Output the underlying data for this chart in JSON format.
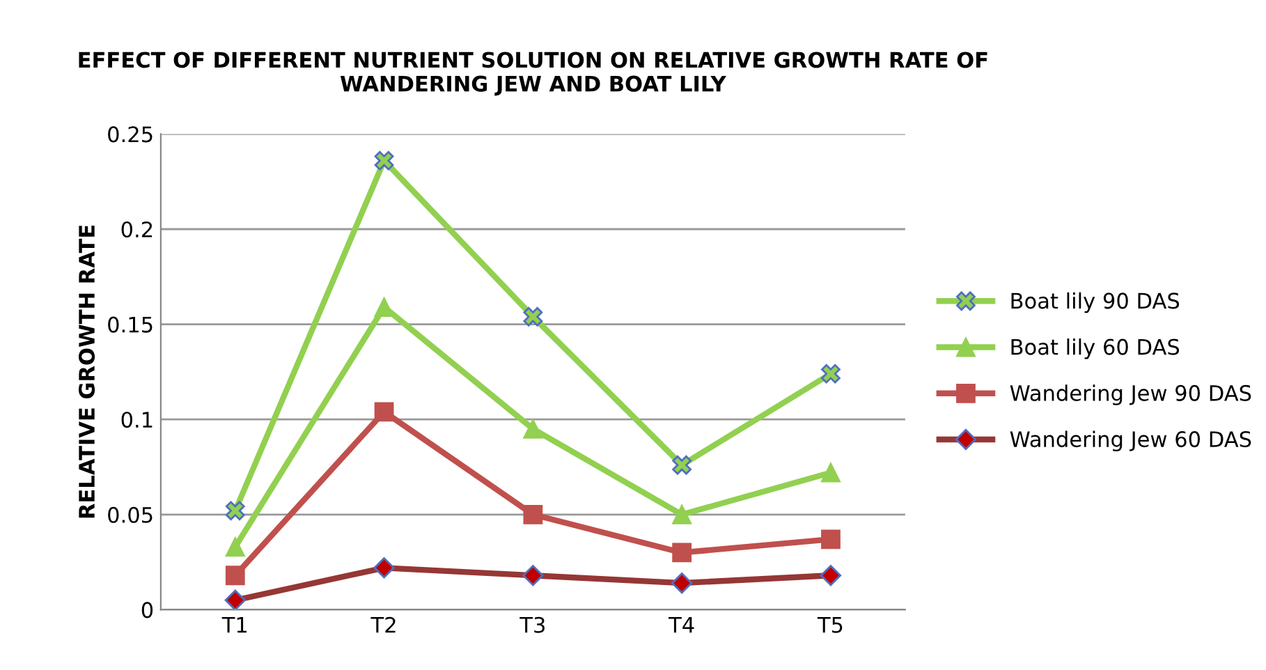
{
  "chart_data": {
    "type": "line",
    "title": "EFFECT OF DIFFERENT NUTRIENT SOLUTION ON RELATIVE GROWTH RATE OF\nWANDERING JEW AND BOAT LILY",
    "ylabel": "RELATIVE GROWTH RATE",
    "categories": [
      "T1",
      "T2",
      "T3",
      "T4",
      "T5"
    ],
    "series": [
      {
        "name": "Boat lily 90 DAS",
        "color": "#92d050",
        "marker": "cross",
        "values": [
          0.052,
          0.236,
          0.154,
          0.076,
          0.124
        ]
      },
      {
        "name": "Boat lily 60 DAS",
        "color": "#92d050",
        "marker": "triangle",
        "values": [
          0.033,
          0.159,
          0.095,
          0.05,
          0.072
        ]
      },
      {
        "name": "Wandering Jew 90 DAS",
        "color": "#c0504d",
        "marker": "square",
        "values": [
          0.018,
          0.104,
          0.05,
          0.03,
          0.037
        ]
      },
      {
        "name": "Wandering Jew 60 DAS",
        "color": "#953735",
        "marker": "diamond",
        "values": [
          0.005,
          0.022,
          0.018,
          0.014,
          0.018
        ]
      }
    ],
    "ylim": [
      0,
      0.25
    ],
    "yticks": [
      0,
      0.05,
      0.1,
      0.15,
      0.2,
      0.25
    ],
    "grid": "y",
    "legend": "right"
  }
}
